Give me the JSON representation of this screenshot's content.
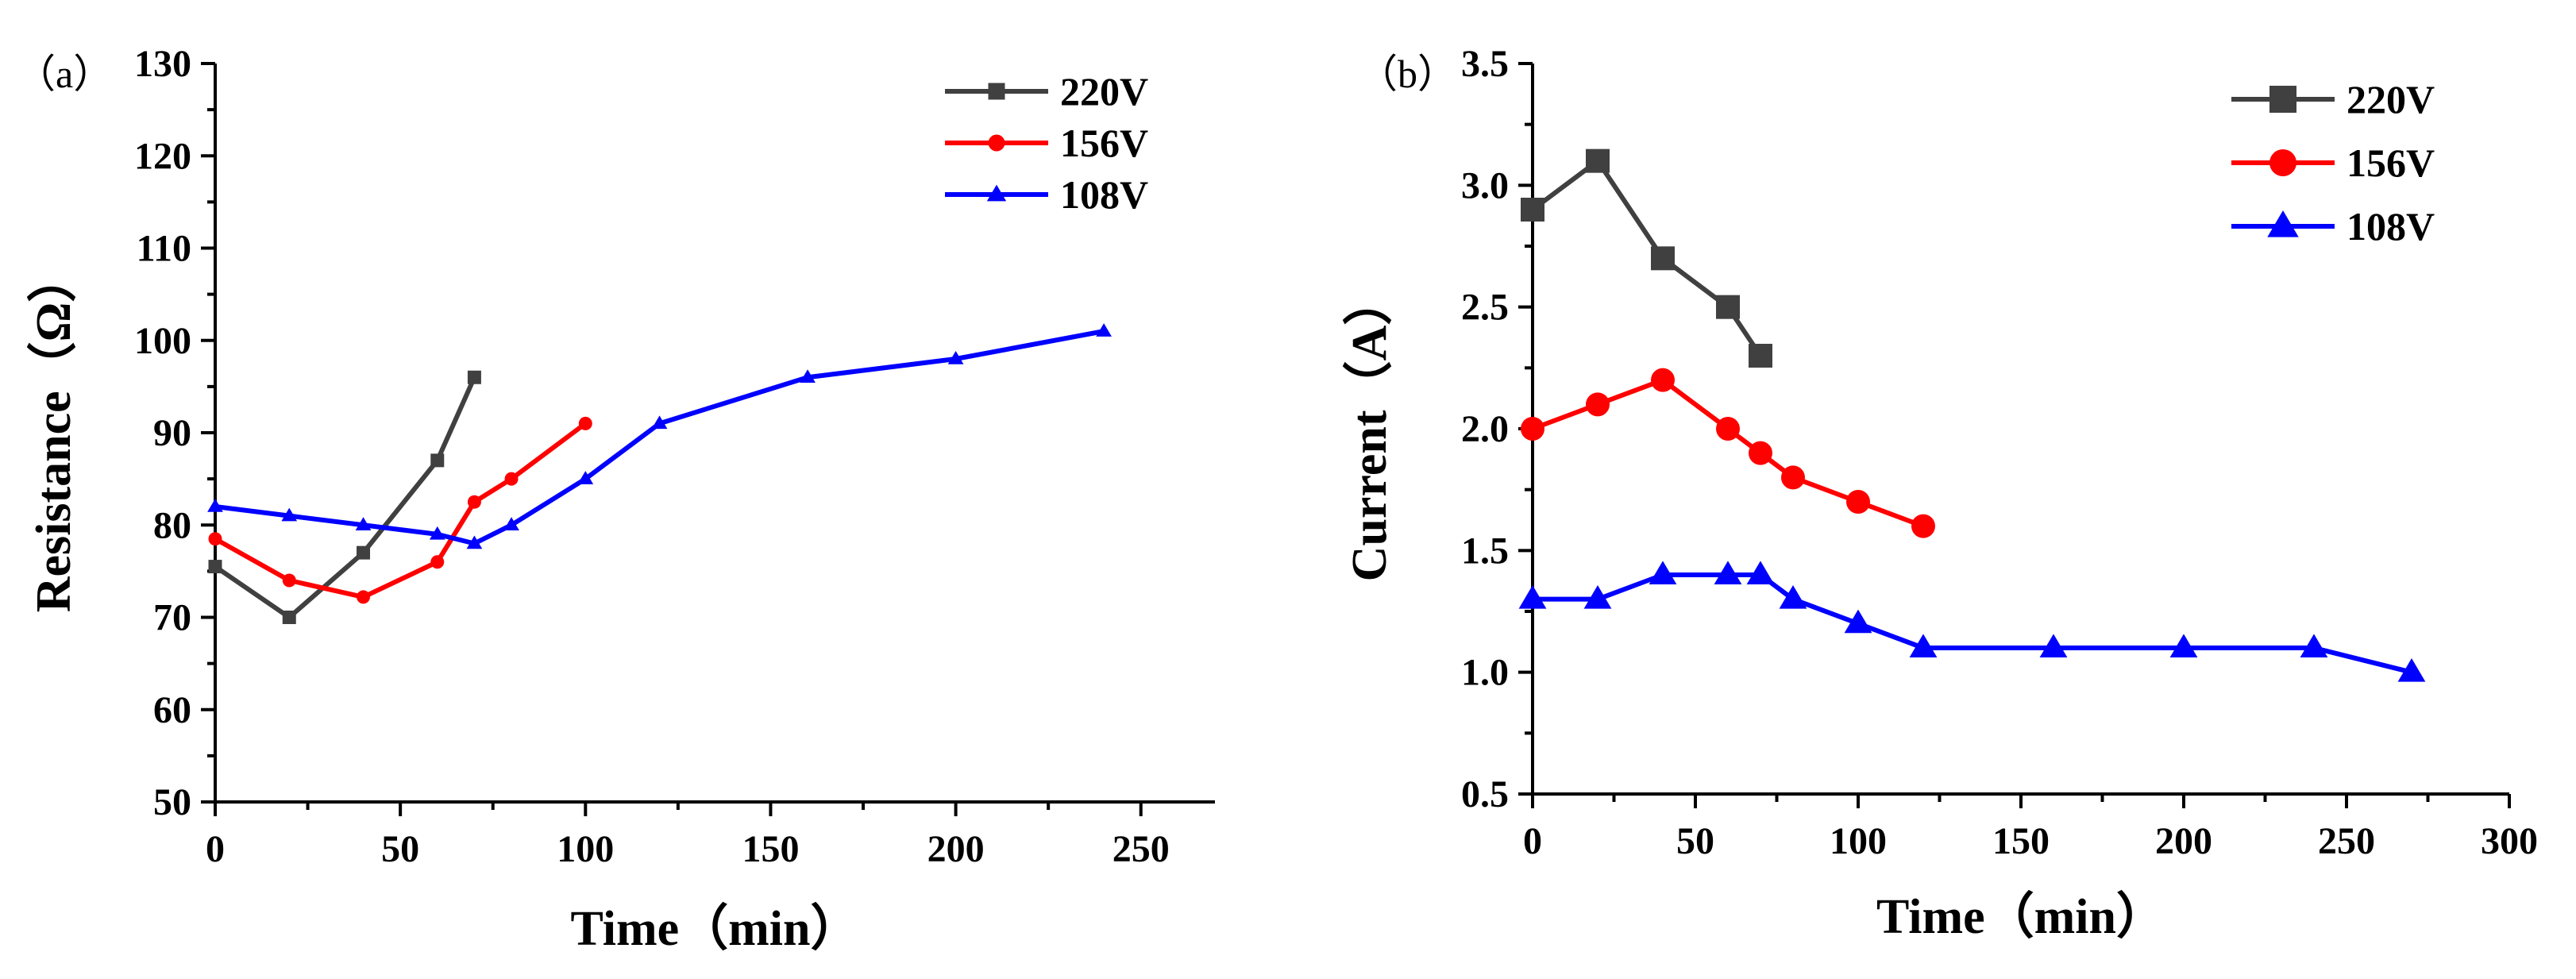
{
  "chart_data": [
    {
      "panel_label": "（a）",
      "type": "line",
      "xlabel": "Time（min）",
      "ylabel": "Resistance（Ω）",
      "xlim": [
        0,
        270
      ],
      "ylim": [
        50,
        130
      ],
      "xticks": [
        0,
        50,
        100,
        150,
        200,
        250
      ],
      "yticks": [
        50,
        60,
        70,
        80,
        90,
        100,
        110,
        120,
        130
      ],
      "xtick_labels": [
        "0",
        "50",
        "100",
        "150",
        "200",
        "250"
      ],
      "ytick_labels": [
        "50",
        "60",
        "70",
        "80",
        "90",
        "100",
        "110",
        "120",
        "130"
      ],
      "legend_position": "top-right",
      "series": [
        {
          "name": "220V",
          "color": "#404040",
          "marker": "square",
          "x": [
            0,
            20,
            40,
            60,
            70
          ],
          "y": [
            75.5,
            70,
            77,
            87,
            96
          ]
        },
        {
          "name": "156V",
          "color": "#ff0000",
          "marker": "circle",
          "x": [
            0,
            20,
            40,
            60,
            70,
            80,
            100
          ],
          "y": [
            78.5,
            74,
            72.2,
            76,
            82.5,
            85,
            91
          ]
        },
        {
          "name": "108V",
          "color": "#0000ff",
          "marker": "triangle",
          "x": [
            0,
            20,
            40,
            60,
            70,
            80,
            100,
            120,
            160,
            200,
            240
          ],
          "y": [
            82,
            81,
            80,
            79,
            78,
            80,
            85,
            91,
            96,
            98,
            101
          ]
        }
      ]
    },
    {
      "panel_label": "（b）",
      "type": "line",
      "xlabel": "Time（min）",
      "ylabel": "Current（A）",
      "xlim": [
        0,
        300
      ],
      "ylim": [
        0.5,
        3.5
      ],
      "xticks": [
        0,
        50,
        100,
        150,
        200,
        250,
        300
      ],
      "yticks": [
        0.5,
        1.0,
        1.5,
        2.0,
        2.5,
        3.0,
        3.5
      ],
      "xtick_labels": [
        "0",
        "50",
        "100",
        "150",
        "200",
        "250",
        "300"
      ],
      "ytick_labels": [
        "0.5",
        "1.0",
        "1.5",
        "2.0",
        "2.5",
        "3.0",
        "3.5"
      ],
      "legend_position": "top-right",
      "series": [
        {
          "name": "220V",
          "color": "#404040",
          "marker": "square",
          "x": [
            0,
            20,
            40,
            60,
            70
          ],
          "y": [
            2.9,
            3.1,
            2.7,
            2.5,
            2.3
          ]
        },
        {
          "name": "156V",
          "color": "#ff0000",
          "marker": "circle",
          "x": [
            0,
            20,
            40,
            60,
            70,
            80,
            100,
            120
          ],
          "y": [
            2.0,
            2.1,
            2.2,
            2.0,
            1.9,
            1.8,
            1.7,
            1.6
          ]
        },
        {
          "name": "108V",
          "color": "#0000ff",
          "marker": "triangle",
          "x": [
            0,
            20,
            40,
            60,
            70,
            80,
            100,
            120,
            160,
            200,
            240,
            270
          ],
          "y": [
            1.3,
            1.3,
            1.4,
            1.4,
            1.4,
            1.3,
            1.2,
            1.1,
            1.1,
            1.1,
            1.1,
            1.0
          ]
        }
      ]
    }
  ]
}
